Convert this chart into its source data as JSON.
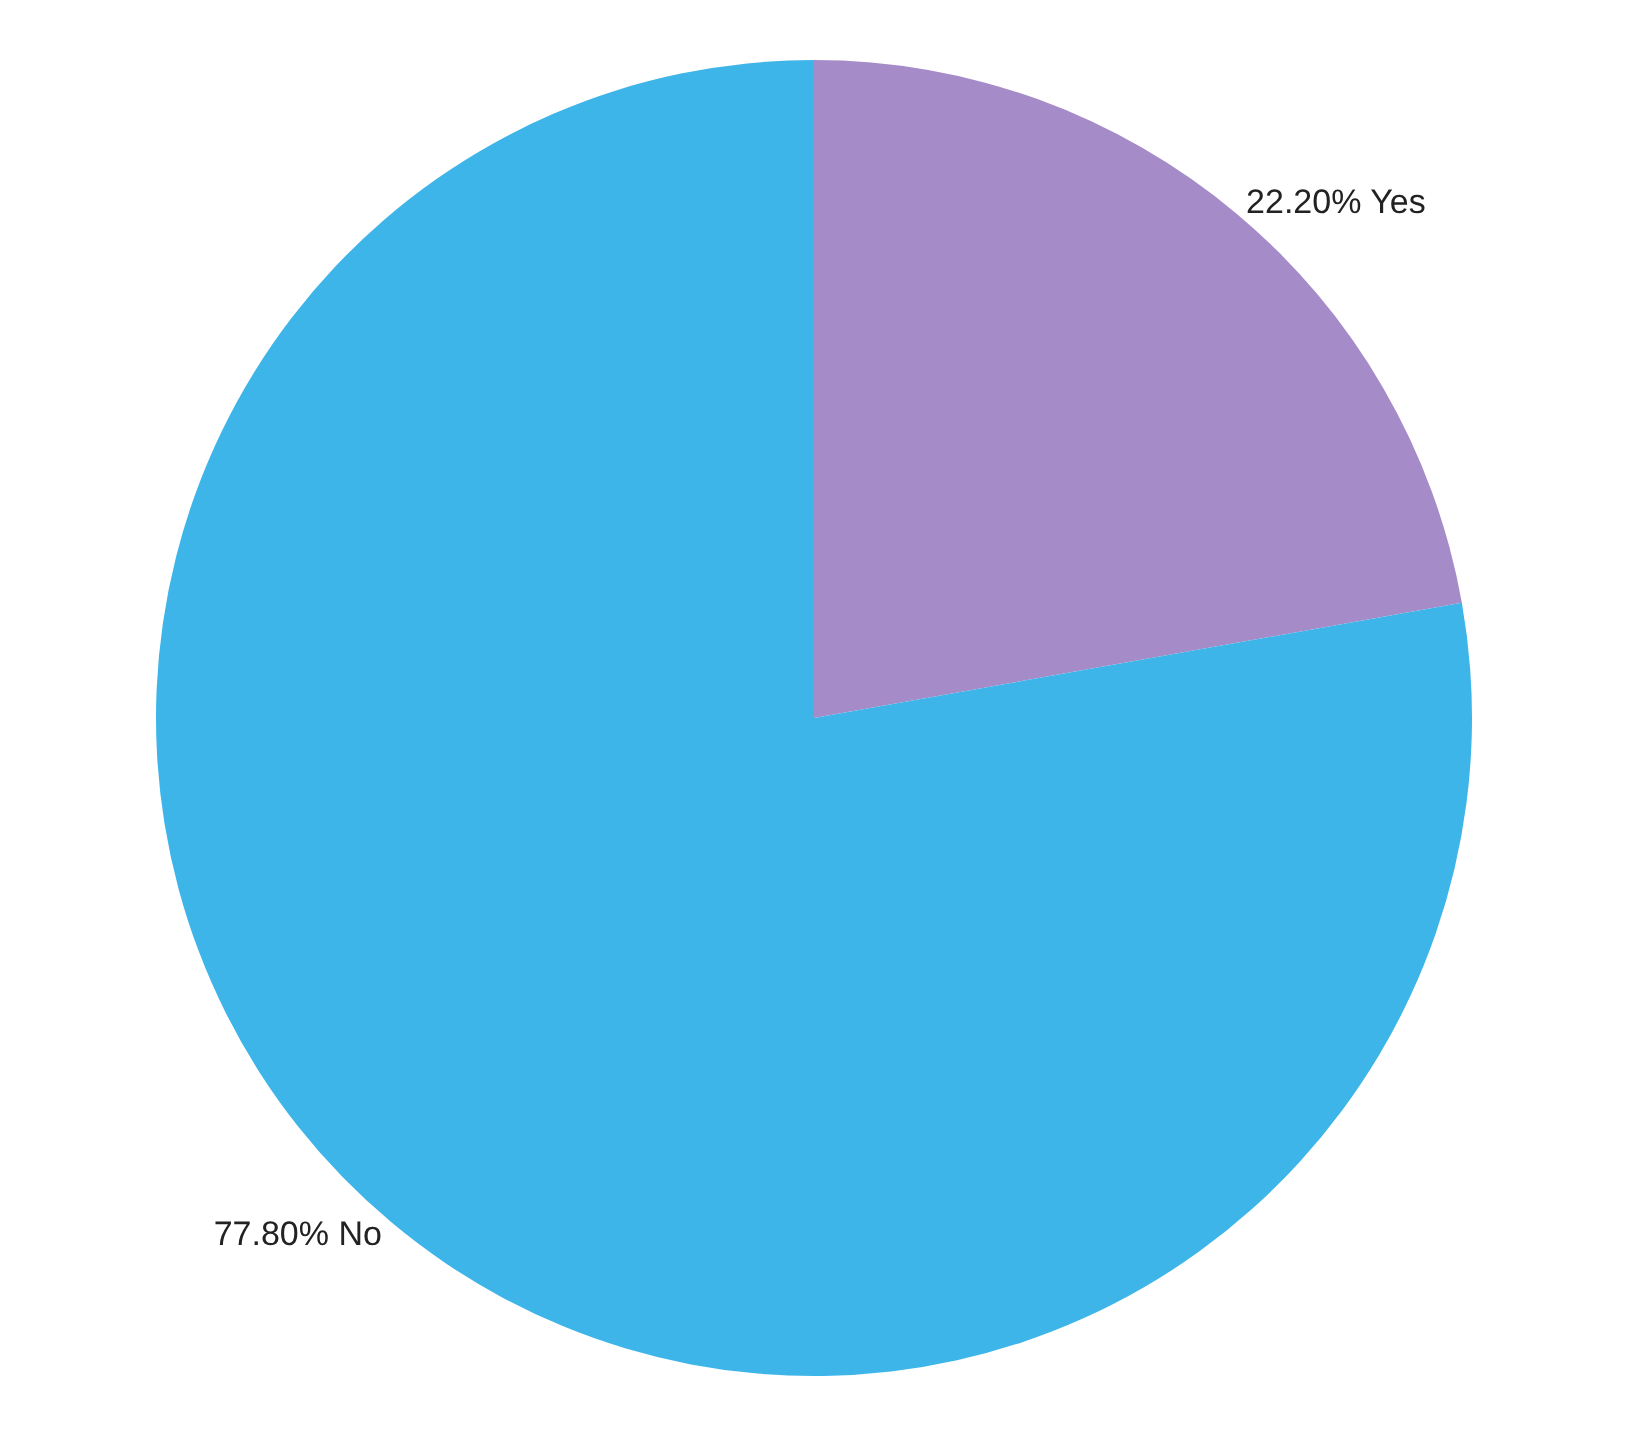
{
  "chart_data": {
    "type": "pie",
    "categories": [
      "Yes",
      "No"
    ],
    "values": [
      22.2,
      77.8
    ],
    "colors": [
      "#a68bc9",
      "#3db5e8"
    ],
    "value_labels": [
      "22.20%",
      "77.80%"
    ],
    "legend": false
  }
}
